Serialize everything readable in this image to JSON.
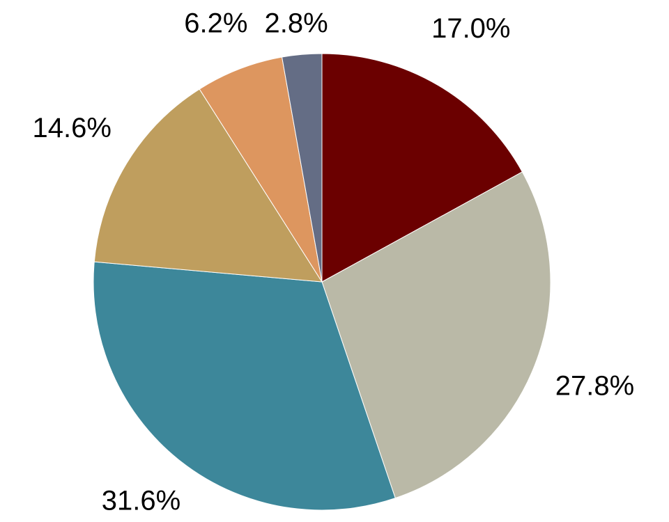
{
  "chart_data": {
    "type": "pie",
    "values": [
      17.0,
      27.8,
      31.6,
      14.6,
      6.2,
      2.8
    ],
    "value_labels": [
      "17.0%",
      "27.8%",
      "31.6%",
      "14.6%",
      "6.2%",
      "2.8%"
    ],
    "colors": [
      "#6b0000",
      "#bab9a7",
      "#3d879a",
      "#bf9e5e",
      "#dd965f",
      "#646d85"
    ]
  }
}
